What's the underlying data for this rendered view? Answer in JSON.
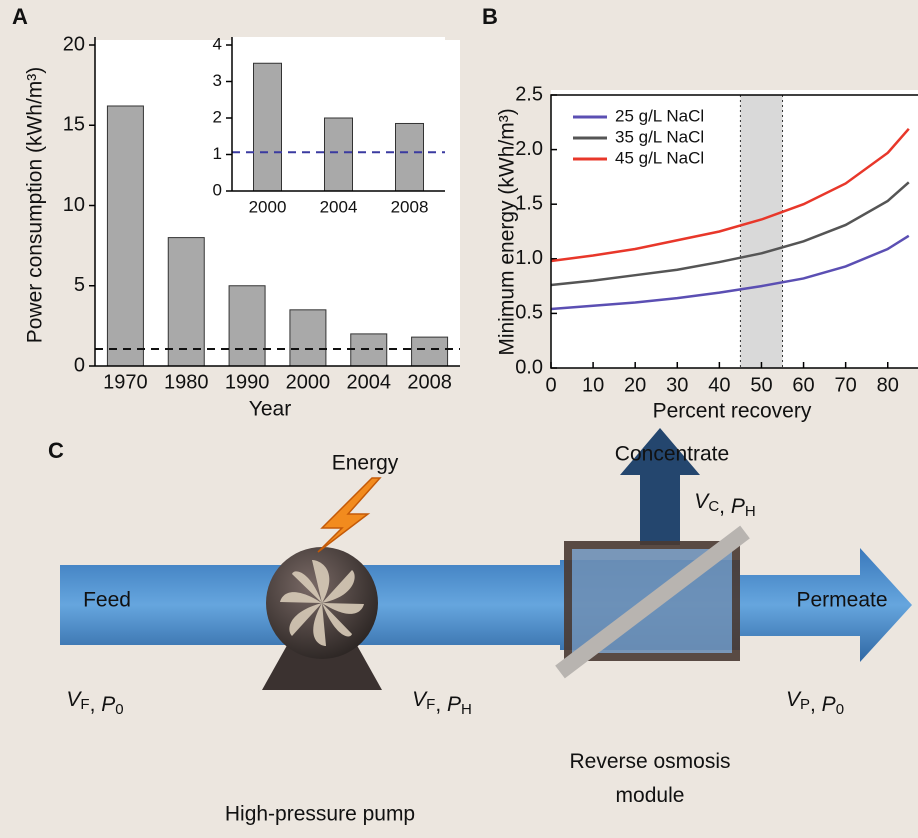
{
  "chart_data": [
    {
      "type": "bar",
      "panel_label": "A",
      "xlabel": "Year",
      "ylabel": "Power consumption (kWh/m³)",
      "categories": [
        "1970",
        "1980",
        "1990",
        "2000",
        "2004",
        "2008"
      ],
      "values": [
        16.2,
        8.0,
        5.0,
        3.5,
        2.0,
        1.8
      ],
      "color": "#a9a9a9",
      "ylim": [
        0,
        20
      ],
      "yticks": [
        0,
        5,
        10,
        15,
        20
      ],
      "reference_line": 1.06
    },
    {
      "type": "bar",
      "categories": [
        "2000",
        "2004",
        "2008"
      ],
      "values": [
        3.5,
        2.0,
        1.85
      ],
      "color": "#a9a9a9",
      "ylim": [
        0,
        4
      ],
      "yticks": [
        0,
        1,
        2,
        3,
        4
      ],
      "reference_line": 1.06
    },
    {
      "type": "line",
      "panel_label": "B",
      "xlabel": "Percent recovery",
      "ylabel": "Minimum energy (kWh/m³)",
      "x": [
        0,
        10,
        20,
        30,
        40,
        50,
        60,
        70,
        80,
        85
      ],
      "series": [
        {
          "name": "25 g/L NaCl",
          "color": "#5b4fb3",
          "values": [
            0.54,
            0.57,
            0.6,
            0.64,
            0.69,
            0.75,
            0.82,
            0.93,
            1.09,
            1.21
          ]
        },
        {
          "name": "35 g/L NaCl",
          "color": "#555555",
          "values": [
            0.76,
            0.8,
            0.85,
            0.9,
            0.97,
            1.05,
            1.16,
            1.31,
            1.53,
            1.7
          ]
        },
        {
          "name": "45 g/L NaCl",
          "color": "#e8372a",
          "values": [
            0.98,
            1.03,
            1.09,
            1.17,
            1.25,
            1.36,
            1.5,
            1.69,
            1.97,
            2.19
          ]
        }
      ],
      "xlim": [
        0,
        86
      ],
      "xticks": [
        0,
        10,
        20,
        30,
        40,
        50,
        60,
        70,
        80
      ],
      "ylim": [
        0,
        2.5
      ],
      "yticks": [
        {
          "value": 0,
          "label": "0.0"
        },
        0.5,
        {
          "value": 1,
          "label": "1.0"
        },
        1.5,
        {
          "value": 2,
          "label": "2.0"
        },
        2.5
      ],
      "shaded_range": [
        45,
        55
      ],
      "legend": "upper left"
    }
  ],
  "diagram": {
    "panel_label": "C",
    "energy": "Energy",
    "feed": "Feed",
    "feed_state": [
      {
        "t": "V",
        "sub": "F"
      },
      {
        "t": ", "
      },
      {
        "t": "P",
        "sub": "0"
      }
    ],
    "pressurized_state": [
      {
        "t": "V",
        "sub": "F"
      },
      {
        "t": ", "
      },
      {
        "t": "P",
        "sub": "H"
      }
    ],
    "pump": "High-pressure pump",
    "concentrate": "Concentrate",
    "concentrate_state": [
      {
        "t": "V",
        "sub": "C"
      },
      {
        "t": ", "
      },
      {
        "t": "P",
        "sub": "H"
      }
    ],
    "permeate": "Permeate",
    "permeate_state": [
      {
        "t": "V",
        "sub": "P"
      },
      {
        "t": ", "
      },
      {
        "t": "P",
        "sub": "0"
      }
    ],
    "module": "Reverse osmosis module"
  }
}
